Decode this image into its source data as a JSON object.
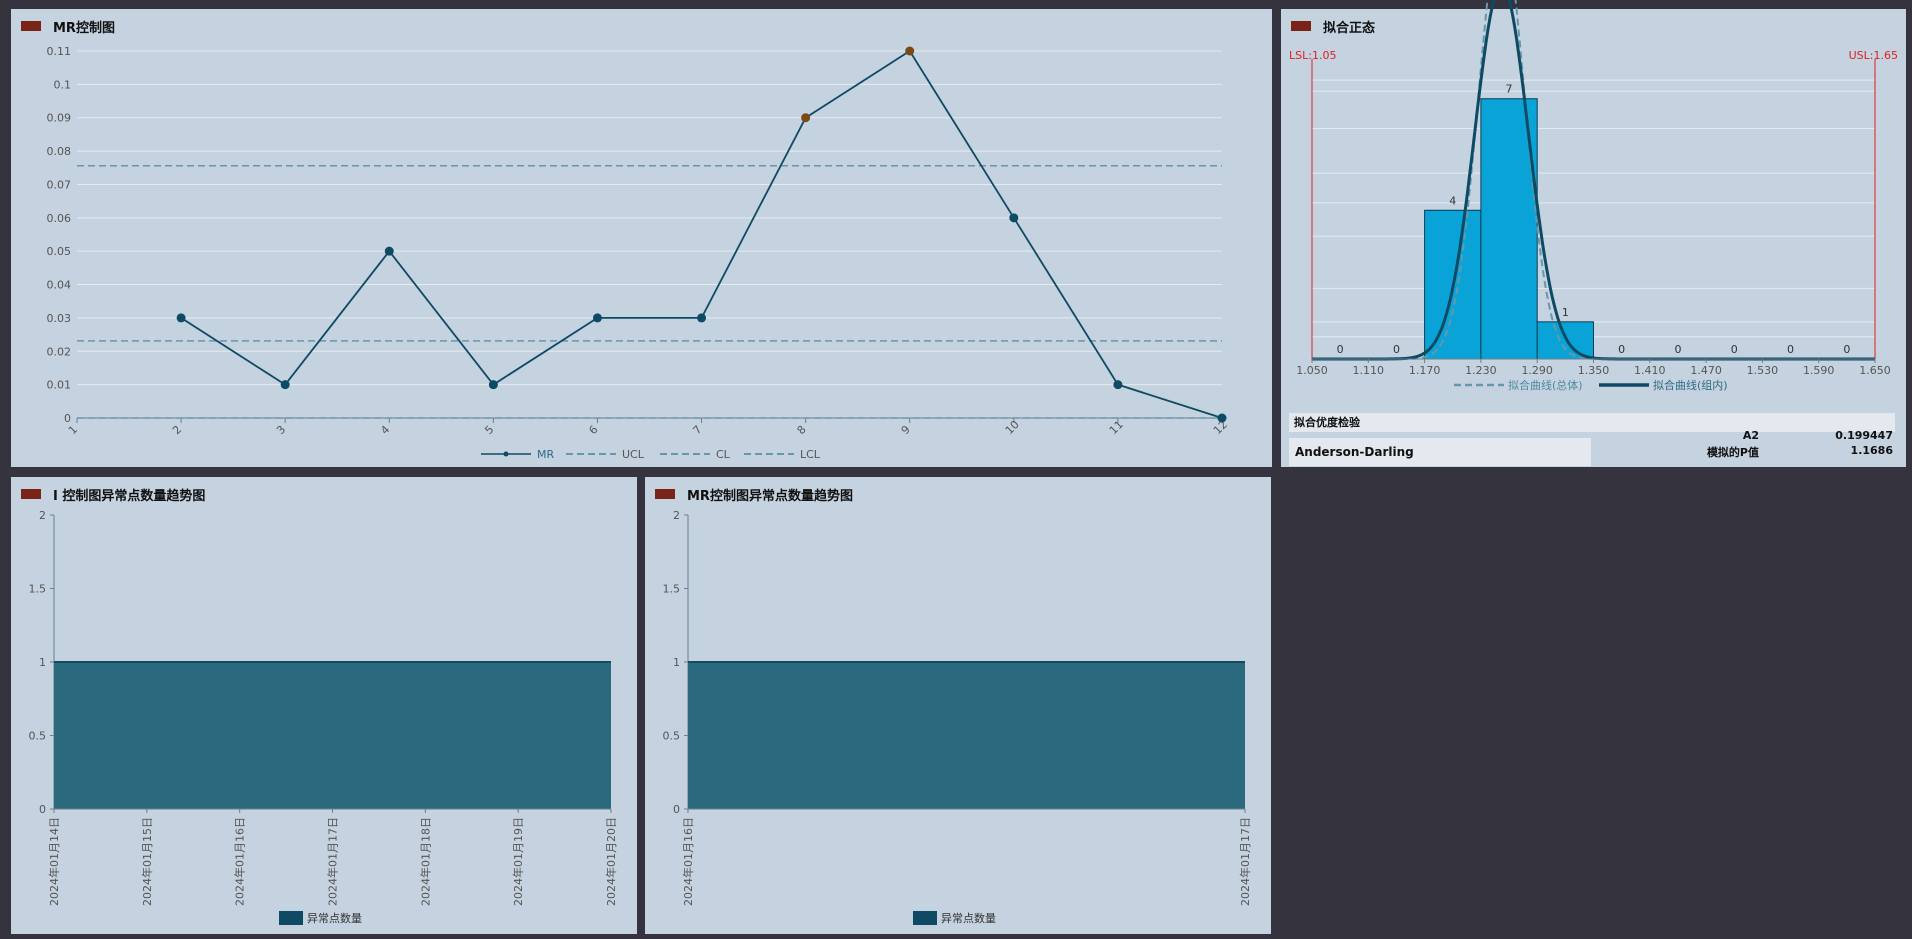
{
  "colors": {
    "background": "#34333e",
    "panel": "#c5d2df",
    "title_badge": "#7a2418",
    "series_line": "#0e4a63",
    "abnormal_point": "#7a4a14",
    "limit_dash": "#6797ab",
    "hist_bar": "#0aa3d8",
    "area_fill": "#2b6a7e",
    "spec_line": "#e02020"
  },
  "mr_panel": {
    "title": "MR控制图",
    "legend": [
      "MR",
      "UCL",
      "CL",
      "LCL"
    ]
  },
  "fit_panel": {
    "title": "拟合正态",
    "lsl_label": "LSL:1.05",
    "usl_label": "USL:1.65",
    "legend": [
      "拟合曲线(总体)",
      "拟合曲线(组内)"
    ],
    "gof_title": "拟合优度检验",
    "gof_test_name": "Anderson-Darling",
    "gof_rows": [
      {
        "label": "A2",
        "value": "0.199447"
      },
      {
        "label": "模拟的P值",
        "value": "1.1686"
      }
    ]
  },
  "i_trend_panel": {
    "title": "I 控制图异常点数量趋势图",
    "legend": "异常点数量"
  },
  "mr_trend_panel": {
    "title": "MR控制图异常点数量趋势图",
    "legend": "异常点数量"
  },
  "chart_data": [
    {
      "type": "line",
      "x": [
        1,
        2,
        3,
        4,
        5,
        6,
        7,
        8,
        9,
        10,
        11,
        12
      ],
      "xticks": [
        "1",
        "2",
        "3",
        "4",
        "5",
        "6",
        "7",
        "8",
        "9",
        "10",
        "11",
        "12"
      ],
      "series": [
        {
          "name": "MR",
          "values": [
            null,
            0.03,
            0.01,
            0.05,
            0.01,
            0.03,
            0.03,
            0.09,
            0.11,
            0.06,
            0.01,
            0
          ]
        }
      ],
      "abnormal_points": [
        8,
        9
      ],
      "limits": {
        "UCL": 0.0756,
        "CL": 0.0231,
        "LCL": 0
      },
      "ylim": [
        0,
        0.11
      ],
      "yticks": [
        "0",
        "0.01",
        "0.02",
        "0.03",
        "0.04",
        "0.05",
        "0.06",
        "0.07",
        "0.08",
        "0.09",
        "0.1",
        "0.11"
      ],
      "grid": true,
      "legend_position": "bottom"
    },
    {
      "type": "bar",
      "bin_edges": [
        "1.050",
        "1.110",
        "1.170",
        "1.230",
        "1.290",
        "1.350",
        "1.410",
        "1.470",
        "1.530",
        "1.590",
        "1.650"
      ],
      "counts": [
        0,
        0,
        4,
        7,
        1,
        0,
        0,
        0,
        0,
        0
      ],
      "count_labels": [
        "0",
        "0",
        "4",
        "7",
        "1",
        "0",
        "0",
        "0",
        "0",
        "0"
      ],
      "ymax": 7.8,
      "fit_overall": {
        "mean": 1.252,
        "sd": 0.0248
      },
      "fit_within": {
        "mean": 1.252,
        "sd": 0.0285
      },
      "spec_limits": {
        "LSL": 1.05,
        "USL": 1.65
      },
      "legend_position": "bottom"
    },
    {
      "type": "area",
      "categories": [
        "2024年01月14日",
        "2024年01月15日",
        "2024年01月16日",
        "2024年01月17日",
        "2024年01月18日",
        "2024年01月19日",
        "2024年01月20日"
      ],
      "values": [
        1,
        1,
        1,
        1,
        1,
        1,
        1
      ],
      "ylim": [
        0,
        2
      ],
      "yticks": [
        "0",
        "0.5",
        "1",
        "1.5",
        "2"
      ],
      "series_name": "异常点数量"
    },
    {
      "type": "area",
      "categories": [
        "2024年01月16日",
        "2024年01月17日"
      ],
      "values": [
        1,
        1
      ],
      "ylim": [
        0,
        2
      ],
      "yticks": [
        "0",
        "0.5",
        "1",
        "1.5",
        "2"
      ],
      "series_name": "异常点数量"
    }
  ]
}
